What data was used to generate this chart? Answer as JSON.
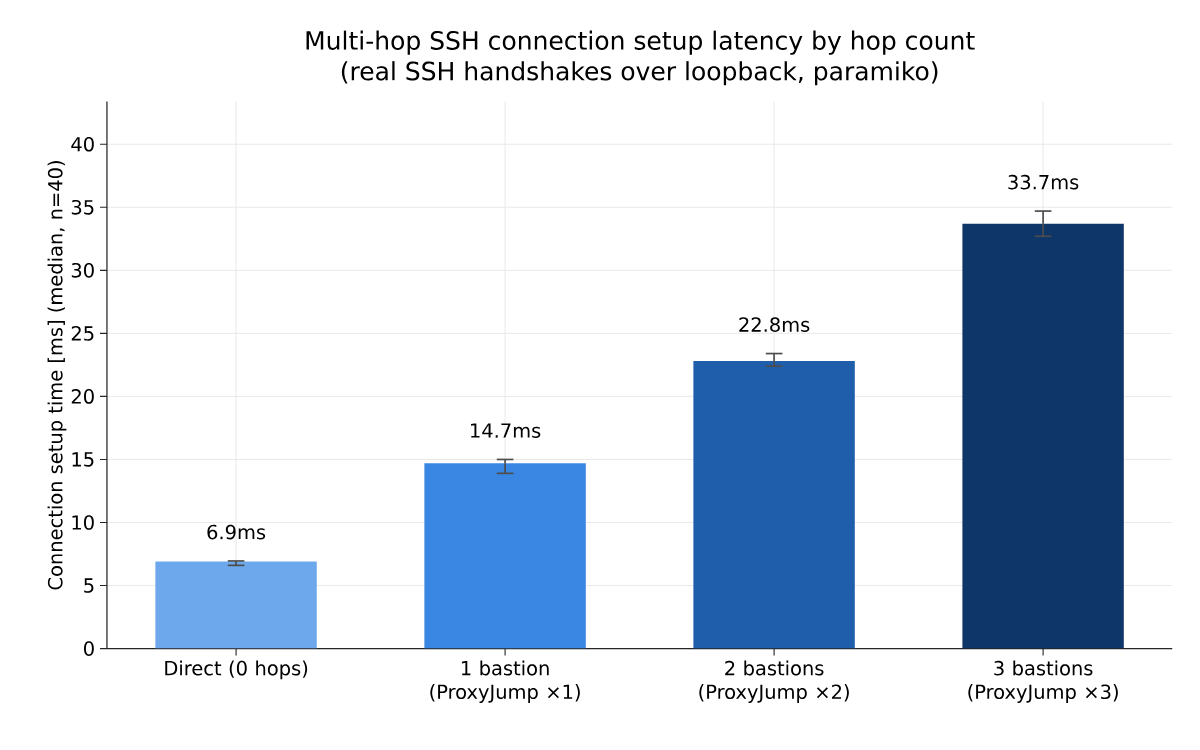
{
  "chart_data": {
    "type": "bar",
    "title": "Multi-hop SSH connection setup latency by hop count\n(real SSH handshakes over loopback, paramiko)",
    "ylabel": "Connection setup time [ms] (median, n=40)",
    "categories": [
      "Direct (0 hops)",
      "1 bastion (ProxyJump ×1)",
      "2 bastions (ProxyJump ×2)",
      "3 bastions (ProxyJump ×3)"
    ],
    "values": [
      6.9,
      14.7,
      22.8,
      33.7
    ],
    "colors": [
      "#6ca8eb",
      "#3a87e3",
      "#1f5eab",
      "#0f3669"
    ],
    "errors": [
      [
        6.6,
        6.95
      ],
      [
        13.9,
        15.0
      ],
      [
        22.4,
        23.4
      ],
      [
        32.7,
        34.7
      ]
    ],
    "value_labels": [
      "6.9ms",
      "14.7ms",
      "22.8ms",
      "33.7ms"
    ],
    "ylim": [
      0,
      43.4
    ],
    "yticks": [
      0,
      5,
      10,
      15,
      20,
      25,
      30,
      35,
      40
    ],
    "grid": true
  }
}
